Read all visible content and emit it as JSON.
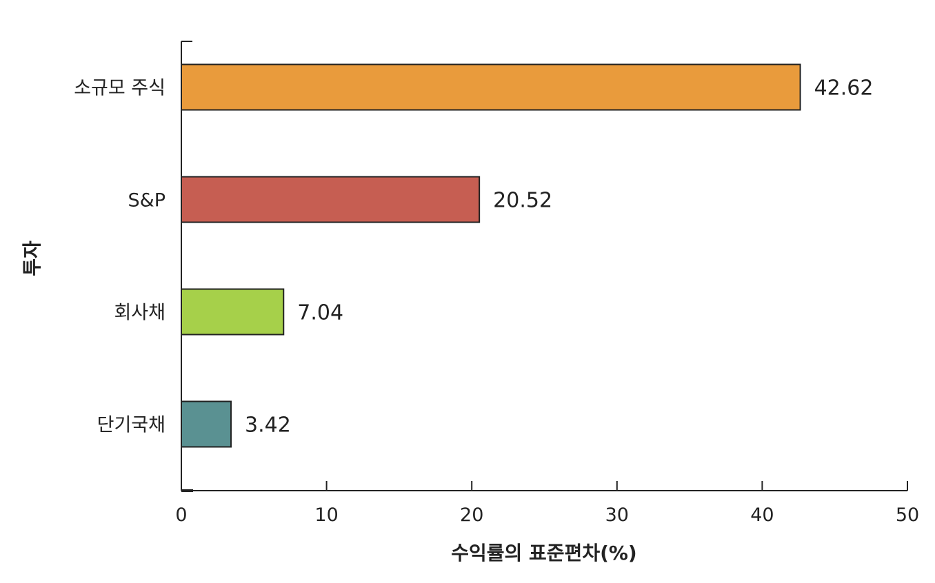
{
  "chart_data": {
    "type": "bar",
    "orientation": "horizontal",
    "categories": [
      "소규모 주식",
      "S&P",
      "회사채",
      "단기국채"
    ],
    "values": [
      42.62,
      20.52,
      7.04,
      3.42
    ],
    "value_labels": [
      "42.62",
      "20.52",
      "7.04",
      "3.42"
    ],
    "colors": [
      "#E99B3C",
      "#C65E52",
      "#A6D04A",
      "#5A9192"
    ],
    "xlabel": "수익률의 표준편차(%)",
    "ylabel": "투자",
    "xlim": [
      0,
      50
    ],
    "xticks": [
      0,
      10,
      20,
      30,
      40,
      50
    ],
    "grid": false
  }
}
